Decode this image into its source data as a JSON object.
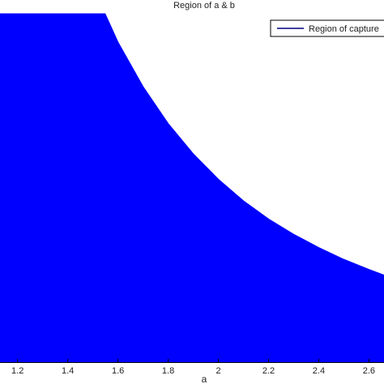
{
  "chart_data": {
    "type": "area",
    "title": "Region of a & b",
    "xlabel": "a",
    "ylabel": "",
    "x_ticks": [
      "1.2",
      "1.4",
      "1.6",
      "1.8",
      "2",
      "2.2",
      "2.4",
      "2.6"
    ],
    "x_tick_values": [
      1.2,
      1.4,
      1.6,
      1.8,
      2.0,
      2.2,
      2.4,
      2.6
    ],
    "xlim": [
      1.13,
      2.66
    ],
    "ylim": [
      0,
      1
    ],
    "grid": false,
    "legend": {
      "entries": [
        "Region of capture"
      ],
      "placement": "top-right"
    },
    "series": [
      {
        "name": "Region of capture",
        "color": "#0000ff",
        "x": [
          1.13,
          1.549,
          1.6,
          1.7,
          1.8,
          1.9,
          2.0,
          2.1,
          2.2,
          2.3,
          2.4,
          2.5,
          2.6,
          2.66
        ],
        "y_upper": [
          1.0,
          1.0,
          0.919,
          0.791,
          0.685,
          0.598,
          0.525,
          0.463,
          0.411,
          0.367,
          0.329,
          0.295,
          0.266,
          0.25
        ],
        "y_lower": [
          0,
          0,
          0,
          0,
          0,
          0,
          0,
          0,
          0,
          0,
          0,
          0,
          0,
          0
        ]
      }
    ]
  }
}
